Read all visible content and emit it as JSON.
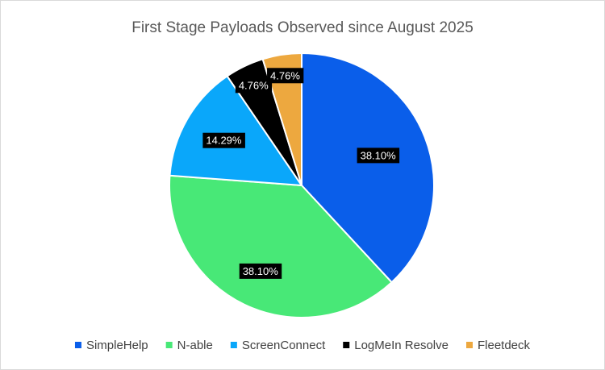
{
  "chart_data": {
    "type": "pie",
    "title": "First Stage Payloads Observed since August 2025",
    "categories": [
      "SimpleHelp",
      "N-able",
      "ScreenConnect",
      "LogMeIn Resolve",
      "Fleetdeck"
    ],
    "values": [
      38.1,
      38.1,
      14.29,
      4.76,
      4.76
    ],
    "data_labels": [
      "38.10%",
      "38.10%",
      "14.29%",
      "4.76%",
      "4.76%"
    ],
    "colors": [
      "#0A5EEA",
      "#48E877",
      "#0AA7FA",
      "#000000",
      "#EDA83F"
    ],
    "start_angle": "12 o'clock",
    "direction": "clockwise",
    "legend_position": "bottom"
  }
}
